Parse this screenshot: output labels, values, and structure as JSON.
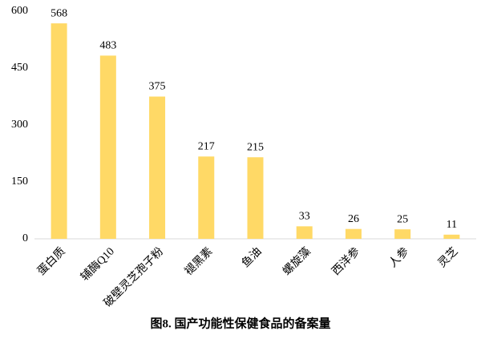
{
  "chart_data": {
    "type": "bar",
    "title": "图8. 国产功能性保健食品的备案量",
    "categories": [
      "蛋白质",
      "辅酶Q10",
      "破壁灵芝孢子粉",
      "褪黑素",
      "鱼油",
      "螺旋藻",
      "西洋参",
      "人参",
      "灵芝"
    ],
    "values": [
      568,
      483,
      375,
      217,
      215,
      33,
      26,
      25,
      11
    ],
    "color": "#ffd966",
    "ylim": [
      0,
      600
    ],
    "yticks": [
      0,
      150,
      300,
      450,
      600
    ],
    "grid": false
  }
}
